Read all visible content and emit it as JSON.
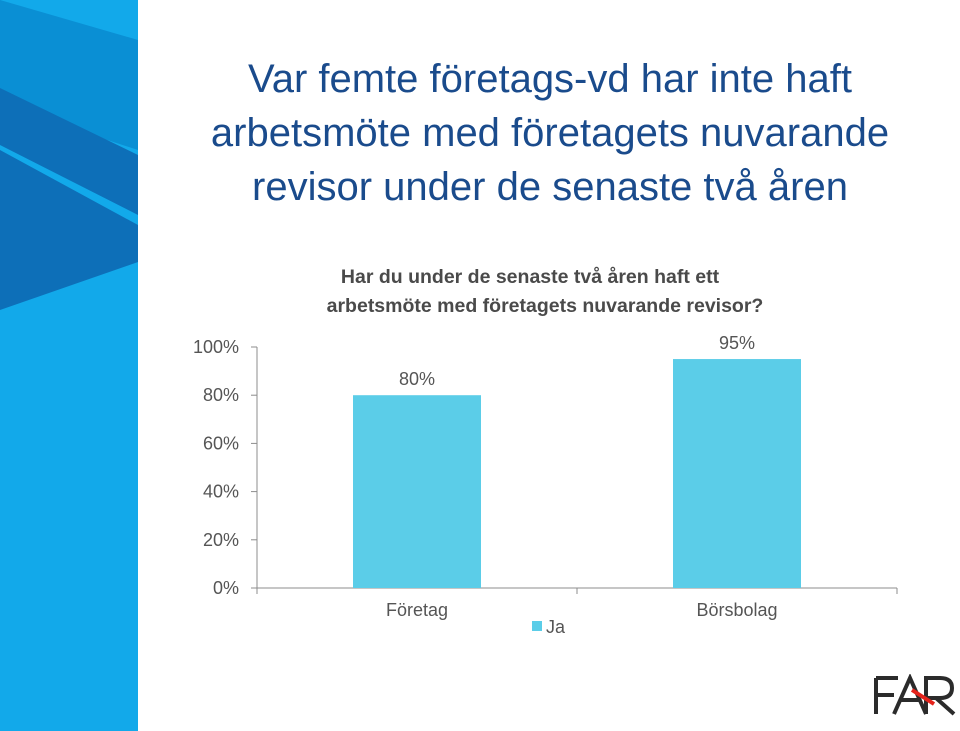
{
  "slide": {
    "title_lines": [
      "Var femte företags-vd har inte haft",
      "arbetsmöte med företagets nuvarande",
      "revisor under de senaste två åren"
    ]
  },
  "colors": {
    "sidebar_light": "#12a9ea",
    "sidebar_mid": "#0a8fd4",
    "sidebar_dark": "#0d6fb8",
    "bar": "#5bcde8",
    "axis": "#8c8c8c",
    "title_blue": "#1a4b8c",
    "logo": "#2b2b2b",
    "logo_accent": "#e4231b"
  },
  "logo": {
    "text": "FAR"
  },
  "chart_data": {
    "type": "bar",
    "title_lines": [
      "Har du under de senaste två åren haft ett",
      "arbetsmöte med företagets nuvarande revisor?"
    ],
    "categories": [
      "Företag",
      "Börsbolag"
    ],
    "series": [
      {
        "name": "Ja",
        "values": [
          80,
          95
        ],
        "labels": [
          "80%",
          "95%"
        ]
      }
    ],
    "yticks": [
      "0%",
      "20%",
      "40%",
      "60%",
      "80%",
      "100%"
    ],
    "ylim": [
      0,
      100
    ],
    "legend": "bottom",
    "grid": false
  }
}
